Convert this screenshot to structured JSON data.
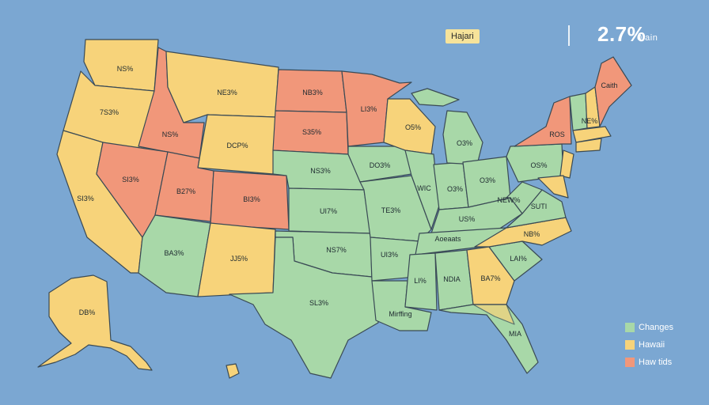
{
  "header": {
    "tag": "Hajari",
    "big_value": "2.7%",
    "big_sub": "0 ain"
  },
  "colors": {
    "green": "#a8d8a8",
    "yellow": "#f7d37a",
    "orange": "#f1977a",
    "ocean": "#7ba7d2"
  },
  "legend": [
    {
      "label": "Changes",
      "color": "#a8d8a8"
    },
    {
      "label": "Hawaii",
      "color": "#f7d37a"
    },
    {
      "label": "Haw tids",
      "color": "#f1977a"
    }
  ],
  "states": {
    "wa": "NS%",
    "or": "7S3%",
    "ca": "SI3%",
    "id": "NS%",
    "nv": "SI3%",
    "mt": "NE3%",
    "wy": "DCP%",
    "ut": "B27%",
    "co": "BI3%",
    "az": "BA3%",
    "nm": "JJ5%",
    "nd": "NB3%",
    "sd": "S35%",
    "ne": "NS3%",
    "ks": "UI7%",
    "ok": "NS7%",
    "tx": "SL3%",
    "mn": "LI3%",
    "ia": "DO3%",
    "mo": "TE3%",
    "ar": "UI3%",
    "la": "Mirffing",
    "wi": "O5%",
    "il": "WIC",
    "in": "O3%",
    "mi": "O3%",
    "oh": "O3%",
    "ky": "US%",
    "tn": "Aoeaats",
    "ms": "LI%",
    "al": "NDIA",
    "ga": "BA7%",
    "fl": "MIA",
    "sc": "LAI%",
    "nc": "NB%",
    "va": "SUTI",
    "wv": "NEW%",
    "pa": "OS%",
    "ny": "ROS",
    "me": "Caith",
    "vt": "NE%",
    "ak": "DB%"
  }
}
